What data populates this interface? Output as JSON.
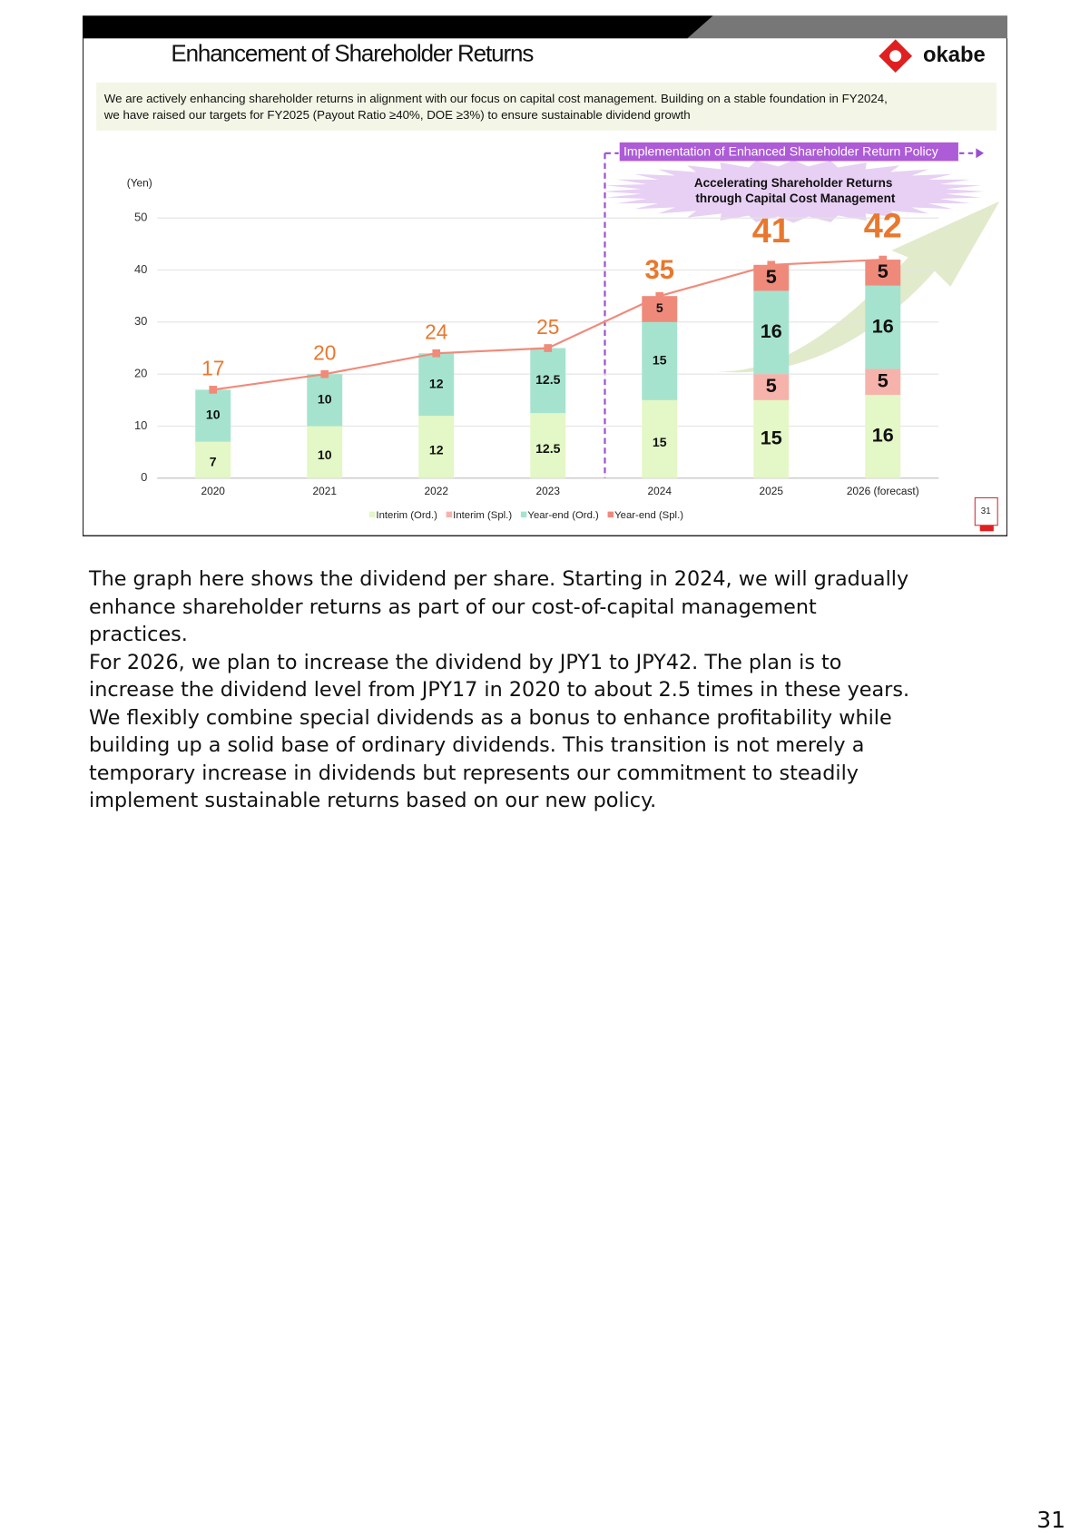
{
  "slide": {
    "title": "Enhancement of Shareholder Returns",
    "description": [
      "We are actively enhancing shareholder returns in alignment with our focus on capital cost management. Building on a stable foundation in FY2024,",
      "we have raised our targets for FY2025 (Payout Ratio ≥40%, DOE ≥3%) to ensure sustainable dividend growth"
    ],
    "logo": "okabe",
    "slide_number": "31"
  },
  "chart_data": {
    "type": "stacked_bar_line",
    "y_label": "(Yen)",
    "policy_label": "Implementation of Enhanced Shareholder Return Policy",
    "callout": [
      "Accelerating Shareholder Returns",
      "through Capital Cost Management"
    ],
    "categories": [
      "2020",
      "2021",
      "2022",
      "2023",
      "2024",
      "2025",
      "2026 (forecast)"
    ],
    "series": [
      {
        "name": "Interim (Ord.)",
        "color": "#e4f7c6",
        "values": [
          7,
          10,
          12,
          12.5,
          15,
          15,
          16
        ]
      },
      {
        "name": "Interim (Spl.)",
        "color": "#f6b3ab",
        "values": [
          null,
          null,
          null,
          null,
          null,
          5,
          5
        ]
      },
      {
        "name": "Year-end (Ord.)",
        "color": "#a5e3cf",
        "values": [
          10,
          10,
          12,
          12.5,
          15,
          16,
          16
        ]
      },
      {
        "name": "Year-end (Spl.)",
        "color": "#ef8a7b",
        "values": [
          null,
          null,
          null,
          null,
          5,
          5,
          5
        ]
      }
    ],
    "totals": {
      "color": "#f08a7a",
      "label_color": "#e8782e",
      "values": [
        17,
        20,
        24,
        25,
        35,
        41,
        42
      ]
    },
    "ylim": [
      0,
      50
    ],
    "yticks": [
      0,
      10,
      20,
      30,
      40,
      50
    ],
    "grid": true,
    "legend": "bottom"
  },
  "notes": [
    "The graph here shows the dividend per share. Starting in 2024, we will gradually",
    "enhance shareholder returns as part of our cost-of-capital management",
    "practices.",
    "For 2026, we plan to increase the dividend by JPY1 to JPY42. The plan is to",
    "increase the dividend level from JPY17 in 2020 to about 2.5 times in these years.",
    "We flexibly combine special dividends as a bonus to enhance profitability while",
    "building up a solid base of ordinary dividends. This transition is not merely a",
    "temporary increase in dividends but represents our commitment to steadily",
    "implement sustainable returns based on our new policy."
  ],
  "page_number": "31"
}
